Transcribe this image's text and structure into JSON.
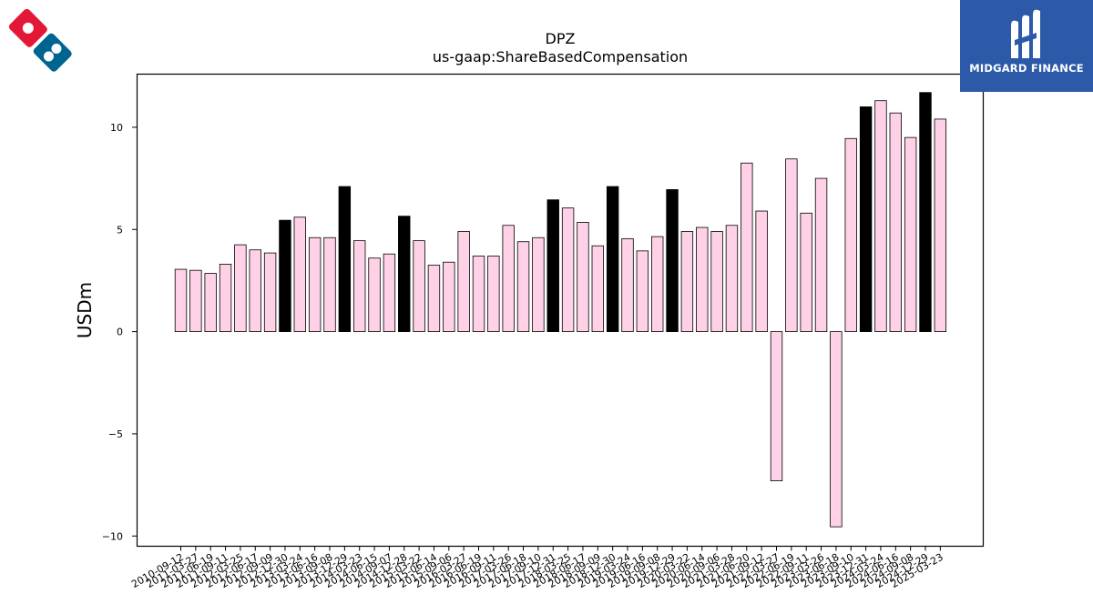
{
  "chart_data": {
    "type": "bar",
    "title": "DPZ",
    "subtitle": "us-gaap:ShareBasedCompensation",
    "ylabel": "USDm",
    "xlabel": "",
    "ylim": [
      -10.5,
      12.6
    ],
    "yticks": [
      -10,
      -5,
      0,
      5,
      10
    ],
    "ytick_labels": [
      "−10",
      "−5",
      "0",
      "5",
      "10"
    ],
    "colors": {
      "quarter": "#ffd1e6",
      "annual": "#000000",
      "edge": "#000000"
    },
    "categories": [
      "2010-09-12",
      "2011-03-27",
      "2011-06-19",
      "2011-09-11",
      "2012-03-25",
      "2012-06-17",
      "2012-09-09",
      "2012-12-30",
      "2013-03-24",
      "2013-06-16",
      "2013-09-08",
      "2013-12-29",
      "2014-03-23",
      "2014-06-15",
      "2014-09-07",
      "2014-12-28",
      "2015-03-22",
      "2015-06-14",
      "2015-09-06",
      "2016-03-27",
      "2016-06-19",
      "2016-09-11",
      "2017-03-26",
      "2017-06-18",
      "2017-09-10",
      "2017-12-31",
      "2018-03-25",
      "2018-06-17",
      "2018-09-09",
      "2018-12-30",
      "2019-03-24",
      "2019-06-16",
      "2019-09-08",
      "2019-12-29",
      "2020-03-22",
      "2020-06-14",
      "2020-09-06",
      "2021-03-28",
      "2021-06-20",
      "2021-09-12",
      "2022-03-27",
      "2022-06-19",
      "2022-09-11",
      "2023-03-26",
      "2023-06-18",
      "2023-09-10",
      "2023-12-31",
      "2024-03-24",
      "2024-06-16",
      "2024-09-08",
      "2024-12-29",
      "2025-03-23"
    ],
    "values": [
      3.05,
      3.0,
      2.85,
      3.3,
      4.25,
      4.0,
      3.85,
      5.45,
      5.6,
      4.6,
      4.6,
      7.1,
      4.45,
      3.6,
      3.8,
      5.65,
      4.45,
      3.25,
      3.4,
      4.9,
      3.7,
      3.7,
      5.2,
      4.4,
      4.6,
      6.45,
      6.05,
      5.35,
      4.2,
      7.1,
      4.55,
      3.95,
      4.65,
      6.95,
      4.9,
      5.1,
      4.9,
      5.2,
      8.25,
      5.9,
      -7.3,
      8.45,
      5.8,
      7.5,
      -9.55,
      9.45,
      11.0,
      11.3,
      10.7,
      9.5,
      11.7,
      10.4
    ],
    "annual": [
      false,
      false,
      false,
      false,
      false,
      false,
      false,
      true,
      false,
      false,
      false,
      true,
      false,
      false,
      false,
      true,
      false,
      false,
      false,
      false,
      false,
      false,
      false,
      false,
      false,
      true,
      false,
      false,
      false,
      true,
      false,
      false,
      false,
      true,
      false,
      false,
      false,
      false,
      false,
      false,
      false,
      false,
      false,
      false,
      false,
      false,
      true,
      false,
      false,
      false,
      true,
      false
    ]
  },
  "logos": {
    "left_icon": "dominos-logo",
    "right_icon": "midgard-finance-logo",
    "right_text": "MIDGARD FINANCE",
    "right_bg": "#2c5aa8"
  }
}
